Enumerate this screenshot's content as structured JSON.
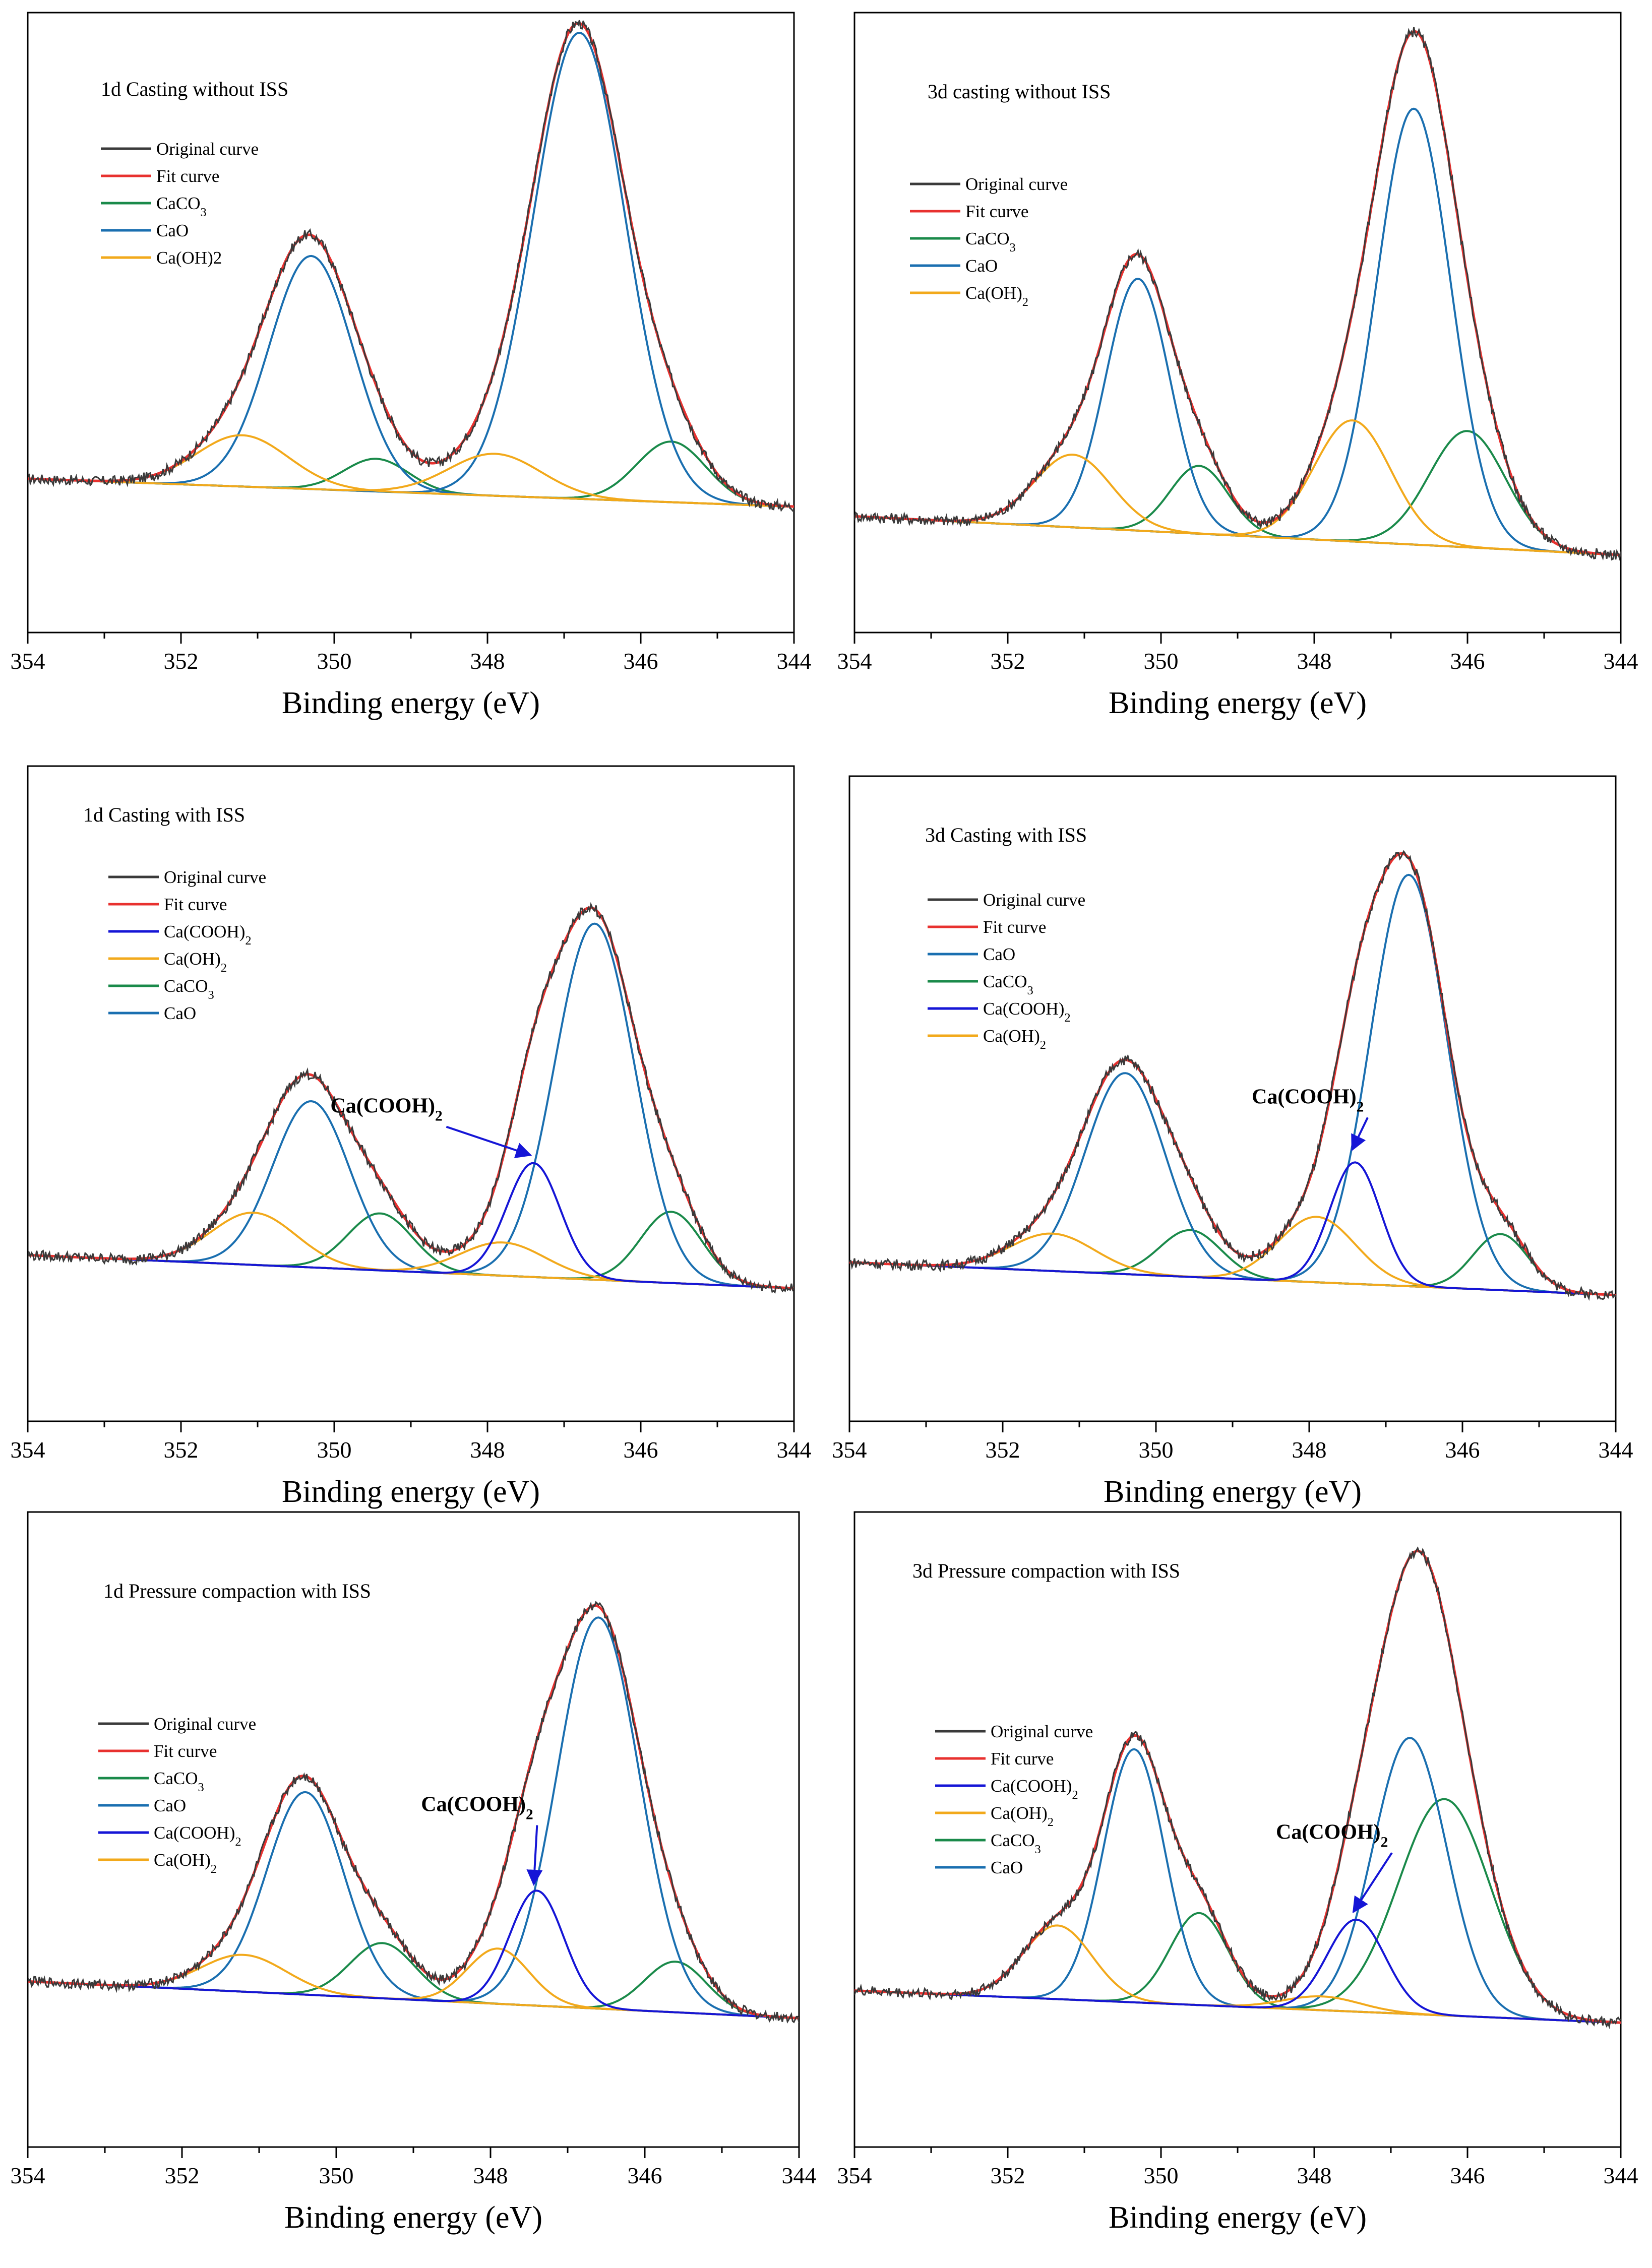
{
  "figure": {
    "type": "xps-deconvolution-grid"
  },
  "colors": {
    "original": "#3a3a3a",
    "fit": "#e8312f",
    "CaCO3": "#1a8a4a",
    "CaO": "#1a6fb0",
    "CaOH2": "#f2a91b",
    "CaCOOH2": "#1515d6"
  },
  "chart_data": [
    {
      "type": "line",
      "title": "1d  Casting without ISS",
      "xlabel": "Binding energy (eV)",
      "xlim": [
        354,
        344
      ],
      "ylim": [
        -0.25,
        1.08
      ],
      "xticks": [
        "354",
        "352",
        "350",
        "348",
        "346",
        "344"
      ],
      "baseline": [
        0.08,
        0.02
      ],
      "legend": [
        {
          "label": "Original curve",
          "key": "original"
        },
        {
          "label": "Fit curve",
          "key": "fit"
        },
        {
          "label": "CaCO₃",
          "key": "CaCO3"
        },
        {
          "label": "CaO",
          "key": "CaO"
        },
        {
          "label": "Ca(OH)2",
          "key": "CaOH2"
        }
      ],
      "series": [
        {
          "name": "CaCO3",
          "key": "CaCO3",
          "peaks": [
            [
              349.45,
              0.07,
              0.42
            ],
            [
              345.6,
              0.13,
              0.45
            ]
          ]
        },
        {
          "name": "CaO",
          "key": "CaO",
          "peaks": [
            [
              350.3,
              0.5,
              0.55
            ],
            [
              346.8,
              1.0,
              0.6
            ]
          ]
        },
        {
          "name": "Ca(OH)2",
          "key": "CaOH2",
          "peaks": [
            [
              351.2,
              0.11,
              0.6
            ],
            [
              347.9,
              0.09,
              0.6
            ]
          ]
        }
      ],
      "annotation": null
    },
    {
      "type": "line",
      "title": "3d   casting without ISS",
      "xlabel": "Binding energy (eV)",
      "xlim": [
        354,
        344
      ],
      "ylim": [
        -0.2,
        1.08
      ],
      "xticks": [
        "354",
        "352",
        "350",
        "348",
        "346",
        "344"
      ],
      "baseline": [
        0.04,
        -0.04
      ],
      "legend": [
        {
          "label": "Original curve",
          "key": "original"
        },
        {
          "label": "Fit curve",
          "key": "fit"
        },
        {
          "label": "CaCO₃",
          "key": "CaCO3"
        },
        {
          "label": "CaO",
          "key": "CaO"
        },
        {
          "label": "Ca(OH)₂",
          "key": "CaOH2"
        }
      ],
      "series": [
        {
          "name": "CaCO3",
          "key": "CaCO3",
          "peaks": [
            [
              349.5,
              0.14,
              0.38
            ],
            [
              346.0,
              0.24,
              0.5
            ]
          ]
        },
        {
          "name": "CaO",
          "key": "CaO",
          "peaks": [
            [
              350.3,
              0.52,
              0.42
            ],
            [
              346.7,
              0.9,
              0.48
            ]
          ]
        },
        {
          "name": "Ca(OH)2",
          "key": "CaOH2",
          "peaks": [
            [
              351.15,
              0.15,
              0.5
            ],
            [
              347.5,
              0.25,
              0.5
            ]
          ]
        }
      ],
      "annotation": null
    },
    {
      "type": "line",
      "title": "1d   Casting with ISS",
      "xlabel": "Binding energy (eV)",
      "xlim": [
        354,
        344
      ],
      "ylim": [
        -0.3,
        1.08
      ],
      "xticks": [
        "354",
        "352",
        "350",
        "348",
        "346",
        "344"
      ],
      "baseline": [
        0.05,
        -0.02
      ],
      "legend": [
        {
          "label": "Original curve",
          "key": "original"
        },
        {
          "label": "Fit curve",
          "key": "fit"
        },
        {
          "label": "Ca(COOH)₂",
          "key": "CaCOOH2"
        },
        {
          "label": "Ca(OH)₂",
          "key": "CaOH2"
        },
        {
          "label": "CaCO₃",
          "key": "CaCO3"
        },
        {
          "label": "CaO",
          "key": "CaO"
        }
      ],
      "series": [
        {
          "name": "CaCO3",
          "key": "CaCO3",
          "peaks": [
            [
              349.4,
              0.12,
              0.42
            ],
            [
              345.6,
              0.15,
              0.4
            ]
          ]
        },
        {
          "name": "CaO",
          "key": "CaO",
          "peaks": [
            [
              350.3,
              0.35,
              0.5
            ],
            [
              346.6,
              0.75,
              0.52
            ]
          ]
        },
        {
          "name": "Ca(OH)2",
          "key": "CaOH2",
          "peaks": [
            [
              351.05,
              0.11,
              0.55
            ],
            [
              347.8,
              0.07,
              0.55
            ]
          ]
        },
        {
          "name": "Ca(COOH)2",
          "key": "CaCOOH2",
          "peaks": [
            [
              347.4,
              0.24,
              0.35
            ]
          ]
        }
      ],
      "annotation": {
        "label": "Ca(COOH)₂",
        "x": 347.4,
        "y": 0.25,
        "tx": 350.05,
        "ty": 0.35
      }
    },
    {
      "type": "line",
      "title": "3d   Casting with ISS",
      "xlabel": "Binding energy (eV)",
      "xlim": [
        354,
        344
      ],
      "ylim": [
        -0.3,
        1.08
      ],
      "xticks": [
        "354",
        "352",
        "350",
        "348",
        "346",
        "344"
      ],
      "baseline": [
        0.04,
        -0.03
      ],
      "legend": [
        {
          "label": "Original curve",
          "key": "original"
        },
        {
          "label": "Fit curve",
          "key": "fit"
        },
        {
          "label": "CaO",
          "key": "CaO"
        },
        {
          "label": "CaCO₃",
          "key": "CaCO3"
        },
        {
          "label": "Ca(COOH)₂",
          "key": "CaCOOH2"
        },
        {
          "label": "Ca(OH)₂",
          "key": "CaOH2"
        }
      ],
      "series": [
        {
          "name": "CaCO3",
          "key": "CaCO3",
          "peaks": [
            [
              349.55,
              0.1,
              0.4
            ],
            [
              345.5,
              0.12,
              0.36
            ]
          ]
        },
        {
          "name": "CaO",
          "key": "CaO",
          "peaks": [
            [
              350.4,
              0.43,
              0.52
            ],
            [
              346.7,
              0.88,
              0.5
            ]
          ]
        },
        {
          "name": "Ca(OH)2",
          "key": "CaOH2",
          "peaks": [
            [
              351.35,
              0.08,
              0.55
            ],
            [
              347.9,
              0.14,
              0.5
            ]
          ]
        },
        {
          "name": "Ca(COOH)2",
          "key": "CaCOOH2",
          "peaks": [
            [
              347.4,
              0.26,
              0.33
            ]
          ]
        }
      ],
      "annotation": {
        "label": "Ca(COOH)₂",
        "x": 347.4,
        "y": 0.27,
        "tx": 348.75,
        "ty": 0.38
      }
    },
    {
      "type": "line",
      "title": "1d  Pressure compaction with ISS",
      "xlabel": "Binding energy (eV)",
      "xlim": [
        354,
        344
      ],
      "ylim": [
        -0.3,
        1.08
      ],
      "xticks": [
        "354",
        "352",
        "350",
        "348",
        "346",
        "344"
      ],
      "baseline": [
        0.06,
        -0.02
      ],
      "legend": [
        {
          "label": "Original curve",
          "key": "original"
        },
        {
          "label": "Fit curve",
          "key": "fit"
        },
        {
          "label": "CaCO₃",
          "key": "CaCO3"
        },
        {
          "label": "CaO",
          "key": "CaO"
        },
        {
          "label": "Ca(COOH)₂",
          "key": "CaCOOH2"
        },
        {
          "label": "Ca(OH)₂",
          "key": "CaOH2"
        }
      ],
      "series": [
        {
          "name": "CaCO3",
          "key": "CaCO3",
          "peaks": [
            [
              349.4,
              0.12,
              0.42
            ],
            [
              345.6,
              0.11,
              0.4
            ]
          ]
        },
        {
          "name": "CaO",
          "key": "CaO",
          "peaks": [
            [
              350.4,
              0.44,
              0.5
            ],
            [
              346.6,
              0.85,
              0.53
            ]
          ]
        },
        {
          "name": "Ca(OH)2",
          "key": "CaOH2",
          "peaks": [
            [
              351.2,
              0.08,
              0.55
            ],
            [
              347.9,
              0.12,
              0.4
            ]
          ]
        },
        {
          "name": "Ca(COOH)2",
          "key": "CaCOOH2",
          "peaks": [
            [
              347.4,
              0.25,
              0.35
            ]
          ]
        }
      ],
      "annotation": {
        "label": "Ca(COOH)₂",
        "x": 347.4,
        "y": 0.26,
        "tx": 348.9,
        "ty": 0.43
      }
    },
    {
      "type": "line",
      "title": "3d   Pressure compaction with ISS",
      "xlabel": "Binding energy (eV)",
      "xlim": [
        354,
        344
      ],
      "ylim": [
        -0.3,
        1.08
      ],
      "xticks": [
        "354",
        "352",
        "350",
        "348",
        "346",
        "344"
      ],
      "baseline": [
        0.04,
        -0.03
      ],
      "legend": [
        {
          "label": "Original curve",
          "key": "original"
        },
        {
          "label": "Fit curve",
          "key": "fit"
        },
        {
          "label": "Ca(COOH)₂",
          "key": "CaCOOH2"
        },
        {
          "label": "Ca(OH)₂",
          "key": "CaOH2"
        },
        {
          "label": "CaCO₃",
          "key": "CaCO3"
        },
        {
          "label": "CaO",
          "key": "CaO"
        }
      ],
      "series": [
        {
          "name": "CaCO3",
          "key": "CaCO3",
          "peaks": [
            [
              349.5,
              0.2,
              0.38
            ],
            [
              346.3,
              0.47,
              0.6
            ]
          ]
        },
        {
          "name": "CaO",
          "key": "CaO",
          "peaks": [
            [
              350.35,
              0.55,
              0.4
            ],
            [
              346.75,
              0.6,
              0.48
            ]
          ]
        },
        {
          "name": "Ca(OH)2",
          "key": "CaOH2",
          "peaks": [
            [
              351.35,
              0.16,
              0.45
            ],
            [
              347.9,
              0.03,
              0.5
            ]
          ]
        },
        {
          "name": "Ca(COOH)2",
          "key": "CaCOOH2",
          "peaks": [
            [
              347.45,
              0.2,
              0.38
            ]
          ]
        }
      ],
      "annotation": {
        "label": "Ca(COOH)₂",
        "x": 347.45,
        "y": 0.2,
        "tx": 348.5,
        "ty": 0.37
      }
    }
  ]
}
